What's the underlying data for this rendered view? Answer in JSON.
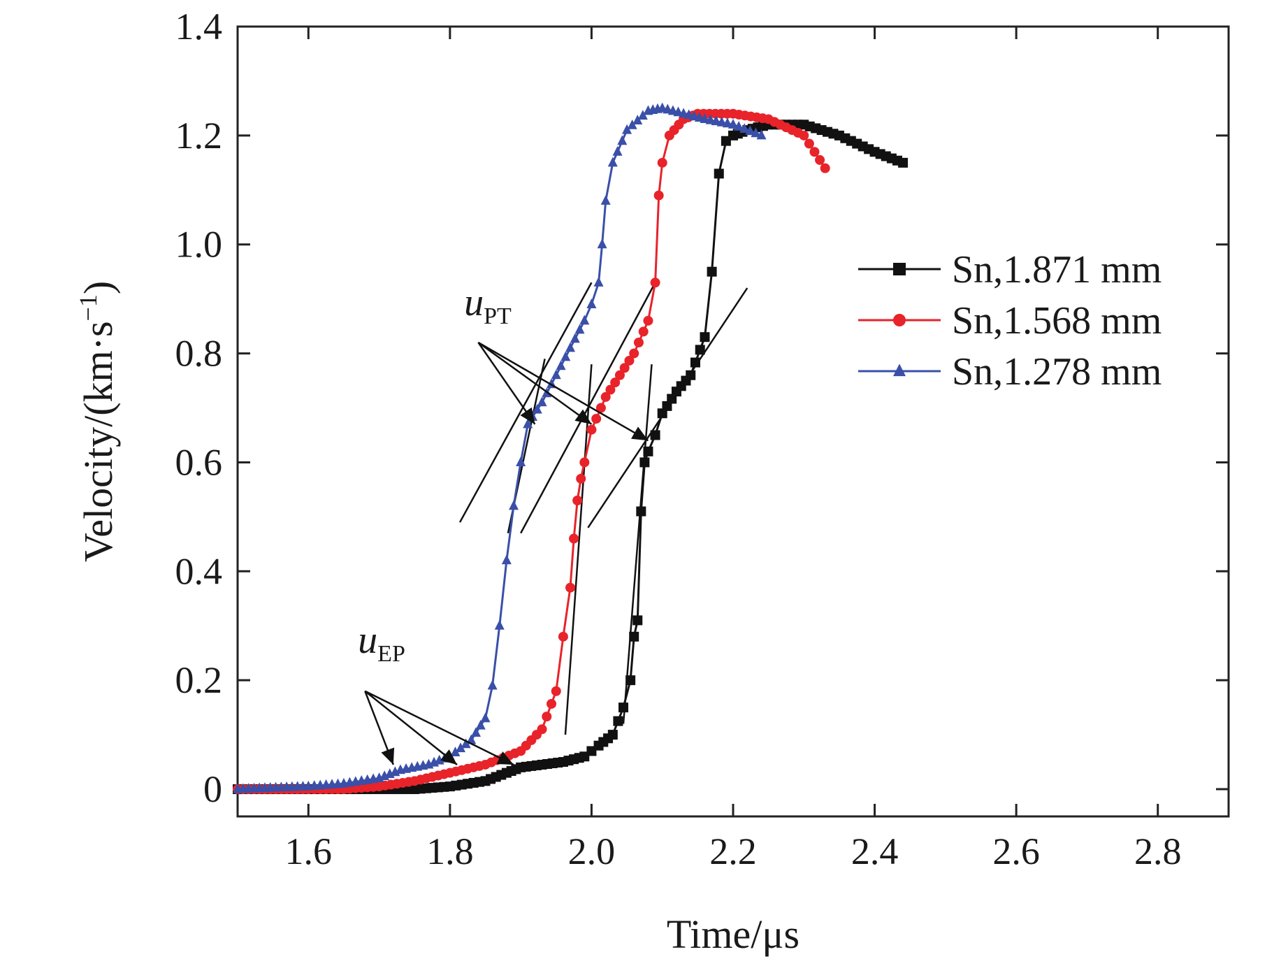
{
  "chart_data": {
    "type": "line",
    "title": "",
    "xlabel": "Time/μs",
    "ylabel": "Velocity/(km·s",
    "ylabel_superscript": "−1",
    "ylabel_close": ")",
    "xlim": [
      1.5,
      2.9
    ],
    "ylim": [
      -0.05,
      1.4
    ],
    "x_ticks": [
      1.6,
      1.8,
      2.0,
      2.2,
      2.4,
      2.6,
      2.8
    ],
    "x_tick_labels": [
      "1.6",
      "1.8",
      "2.0",
      "2.2",
      "2.4",
      "2.6",
      "2.8"
    ],
    "y_ticks": [
      0,
      0.2,
      0.4,
      0.6,
      0.8,
      1.0,
      1.2,
      1.4
    ],
    "y_tick_labels": [
      "0",
      "0.2",
      "0.4",
      "0.6",
      "0.8",
      "1.0",
      "1.2",
      "1.4"
    ],
    "grid": false,
    "legend_position": "right",
    "series": [
      {
        "name": "Sn,1.871 mm",
        "color": "#111111",
        "marker": "square",
        "x": [
          1.5,
          1.6,
          1.7,
          1.75,
          1.8,
          1.85,
          1.88,
          1.9,
          1.93,
          1.96,
          1.99,
          2.01,
          2.03,
          2.045,
          2.055,
          2.06,
          2.065,
          2.07,
          2.075,
          2.08,
          2.09,
          2.1,
          2.12,
          2.14,
          2.16,
          2.17,
          2.18,
          2.19,
          2.2,
          2.22,
          2.25,
          2.3,
          2.35,
          2.4,
          2.44
        ],
        "y": [
          0.0,
          0.0,
          0.0,
          0.0,
          0.005,
          0.015,
          0.03,
          0.04,
          0.045,
          0.05,
          0.06,
          0.08,
          0.1,
          0.15,
          0.2,
          0.28,
          0.31,
          0.51,
          0.6,
          0.62,
          0.65,
          0.69,
          0.73,
          0.76,
          0.83,
          0.95,
          1.13,
          1.19,
          1.2,
          1.21,
          1.22,
          1.22,
          1.2,
          1.17,
          1.15
        ]
      },
      {
        "name": "Sn,1.568 mm",
        "color": "#e8232a",
        "marker": "circle",
        "x": [
          1.5,
          1.6,
          1.65,
          1.7,
          1.75,
          1.8,
          1.85,
          1.9,
          1.93,
          1.95,
          1.96,
          1.97,
          1.975,
          1.98,
          1.985,
          1.99,
          2.0,
          2.02,
          2.04,
          2.06,
          2.08,
          2.09,
          2.095,
          2.1,
          2.11,
          2.13,
          2.15,
          2.2,
          2.25,
          2.3,
          2.33
        ],
        "y": [
          0.0,
          0.0,
          0.0,
          0.005,
          0.015,
          0.03,
          0.045,
          0.07,
          0.11,
          0.18,
          0.28,
          0.37,
          0.46,
          0.53,
          0.57,
          0.6,
          0.66,
          0.72,
          0.76,
          0.8,
          0.86,
          0.93,
          1.09,
          1.15,
          1.2,
          1.23,
          1.24,
          1.24,
          1.23,
          1.2,
          1.14
        ]
      },
      {
        "name": "Sn,1.278 mm",
        "color": "#3a4fa8",
        "marker": "triangle",
        "x": [
          1.5,
          1.6,
          1.65,
          1.7,
          1.73,
          1.77,
          1.8,
          1.83,
          1.85,
          1.86,
          1.87,
          1.88,
          1.89,
          1.9,
          1.91,
          1.93,
          1.95,
          1.97,
          1.99,
          2.0,
          2.01,
          2.015,
          2.02,
          2.03,
          2.05,
          2.08,
          2.1,
          2.13,
          2.16,
          2.2,
          2.24
        ],
        "y": [
          0.0,
          0.005,
          0.01,
          0.02,
          0.035,
          0.045,
          0.06,
          0.09,
          0.13,
          0.19,
          0.3,
          0.42,
          0.52,
          0.6,
          0.67,
          0.71,
          0.76,
          0.81,
          0.86,
          0.89,
          0.93,
          1.0,
          1.08,
          1.15,
          1.21,
          1.245,
          1.25,
          1.24,
          1.23,
          1.22,
          1.2
        ]
      }
    ],
    "annotations": [
      {
        "text": "u",
        "subscript": "PT",
        "x": 1.82,
        "y": 0.87
      },
      {
        "text": "u",
        "subscript": "EP",
        "x": 1.67,
        "y": 0.25
      }
    ]
  }
}
